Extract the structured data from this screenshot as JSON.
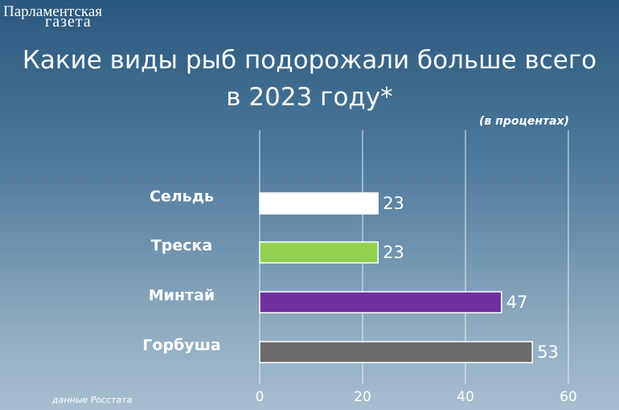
{
  "logo": [
    "Парламентская",
    "газета"
  ],
  "chart_data": {
    "type": "bar",
    "orientation": "horizontal",
    "title": "Какие виды рыб подорожали больше всего в 2023 году*",
    "subtitle": "(в процентах)",
    "source": "данные Росстата",
    "categories": [
      "Сельдь",
      "Треска",
      "Минтай",
      "Горбуша"
    ],
    "values": [
      23,
      23,
      47,
      53
    ],
    "colors": [
      "#ffffff",
      "#92d050",
      "#7030a0",
      "#6b6b6b"
    ],
    "xlim": [
      0,
      60
    ],
    "xticks": [
      0,
      20,
      40,
      60
    ],
    "grid": true
  }
}
